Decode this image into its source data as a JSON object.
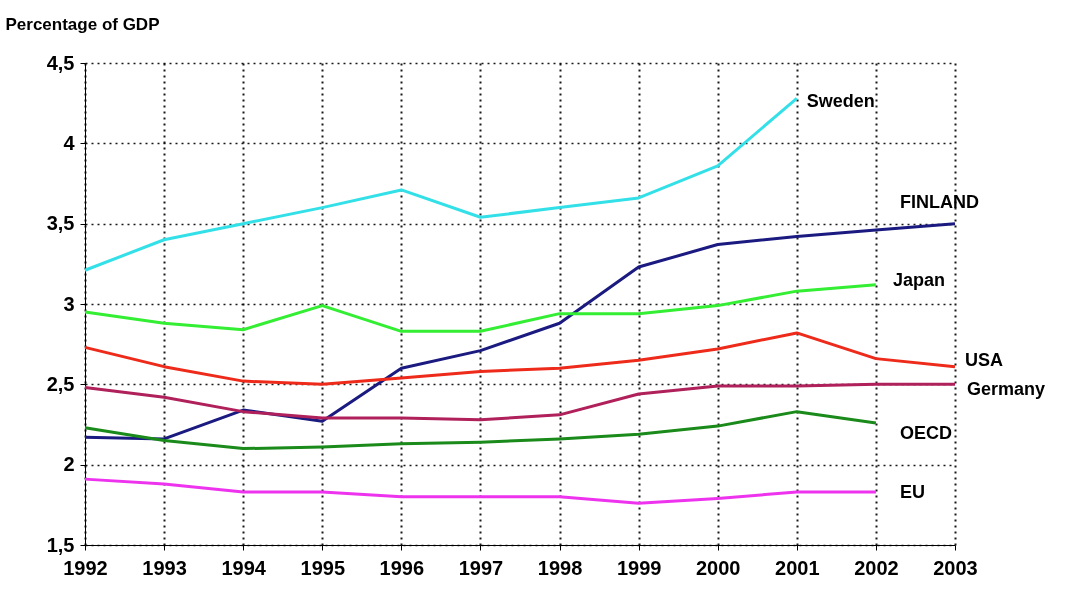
{
  "chart_data": {
    "type": "line",
    "ylabel": "Percentage of GDP",
    "x": [
      1992,
      1993,
      1994,
      1995,
      1996,
      1997,
      1998,
      1999,
      2000,
      2001,
      2002,
      2003
    ],
    "series": [
      {
        "name": "Sweden",
        "color": "#33e0e8",
        "values": [
          3.21,
          3.4,
          3.5,
          3.6,
          3.71,
          3.54,
          3.6,
          3.66,
          3.86,
          4.28,
          null,
          null
        ]
      },
      {
        "name": "FINLAND",
        "color": "#1a1a80",
        "values": [
          2.17,
          2.16,
          2.34,
          2.27,
          2.6,
          2.71,
          2.88,
          3.23,
          3.37,
          3.42,
          3.46,
          3.5
        ]
      },
      {
        "name": "Japan",
        "color": "#33ee33",
        "values": [
          2.95,
          2.88,
          2.84,
          2.99,
          2.83,
          2.83,
          2.94,
          2.94,
          2.99,
          3.08,
          3.12,
          null
        ]
      },
      {
        "name": "USA",
        "color": "#ee2a1a",
        "values": [
          2.73,
          2.61,
          2.52,
          2.5,
          2.54,
          2.58,
          2.6,
          2.65,
          2.72,
          2.82,
          2.66,
          2.61
        ]
      },
      {
        "name": "Germany",
        "color": "#b0205a",
        "values": [
          2.48,
          2.42,
          2.33,
          2.29,
          2.29,
          2.28,
          2.31,
          2.44,
          2.49,
          2.49,
          2.5,
          2.5
        ]
      },
      {
        "name": "OECD",
        "color": "#1a8a1a",
        "values": [
          2.23,
          2.15,
          2.1,
          2.11,
          2.13,
          2.14,
          2.16,
          2.19,
          2.24,
          2.33,
          2.26,
          null
        ]
      },
      {
        "name": "EU",
        "color": "#ee33ee",
        "values": [
          1.91,
          1.88,
          1.83,
          1.83,
          1.8,
          1.8,
          1.8,
          1.76,
          1.79,
          1.83,
          1.83,
          null
        ]
      }
    ],
    "xlim": [
      1992,
      2003
    ],
    "xticks": [
      1992,
      1993,
      1994,
      1995,
      1996,
      1997,
      1998,
      1999,
      2000,
      2001,
      2002,
      2003
    ],
    "ylim": [
      1.5,
      4.5
    ],
    "yticks": [
      {
        "value": 1.5,
        "label": "1,5"
      },
      2,
      {
        "value": 2.5,
        "label": "2,5"
      },
      3,
      {
        "value": 3.5,
        "label": "3,5"
      },
      4,
      {
        "value": 4.5,
        "label": "4,5"
      }
    ],
    "grid": true,
    "legend": false,
    "line_style": "solid",
    "marker": "none"
  }
}
